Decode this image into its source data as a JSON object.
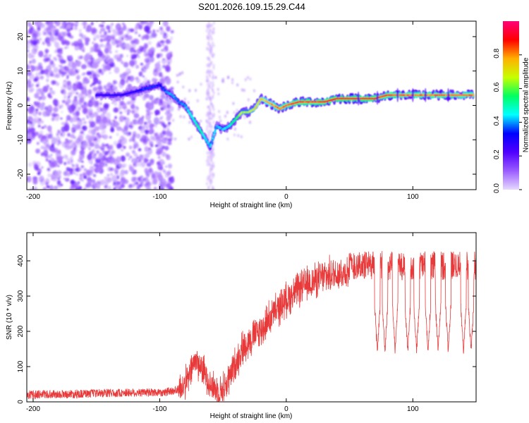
{
  "figure_title": "S201.2026.109.15.29.C44",
  "chart_data": [
    {
      "type": "heatmap",
      "title": "S201.2026.109.15.29.C44",
      "xlabel": "Height of straight line (km)",
      "ylabel": "Frequency (Hz)",
      "xlim": [
        -205,
        150
      ],
      "ylim": [
        -24.5,
        24.5
      ],
      "xticks": [
        -200,
        -100,
        0,
        100
      ],
      "yticks": [
        -20,
        -10,
        0,
        10,
        20
      ],
      "colorbar": {
        "label": "Normalized spectral amplitude",
        "range": [
          0.0,
          1.0
        ],
        "ticks": [
          "0.0",
          "0.2",
          "0.4",
          "0.6",
          "0.8"
        ],
        "tick_values": [
          0.0,
          0.2,
          0.4,
          0.6,
          0.8
        ],
        "colors": [
          "#e6d9ff",
          "#9b5cff",
          "#5000ff",
          "#0000ff",
          "#00ffff",
          "#00ff60",
          "#c8ff00",
          "#ffb000",
          "#ff0000",
          "#ff007a"
        ]
      },
      "ridge": {
        "x": [
          -150,
          -140,
          -130,
          -120,
          -110,
          -100,
          -95,
          -90,
          -85,
          -80,
          -75,
          -70,
          -65,
          -60,
          -55,
          -50,
          -45,
          -40,
          -35,
          -30,
          -25,
          -20,
          -15,
          -10,
          -5,
          0,
          10,
          20,
          30,
          40,
          50,
          60,
          70,
          80,
          90,
          100,
          110,
          120,
          130,
          140,
          148
        ],
        "y": [
          3,
          3,
          3,
          4,
          5,
          6,
          4,
          3,
          1,
          0,
          -3,
          -6,
          -9,
          -12,
          -6,
          -7,
          -6,
          -4,
          -2,
          -2,
          -1,
          2,
          1,
          0,
          -1,
          0,
          1,
          1,
          1,
          2,
          2,
          2,
          2,
          3,
          3,
          3,
          3,
          3,
          3,
          3,
          3
        ],
        "amplitude": [
          0.3,
          0.3,
          0.3,
          0.3,
          0.4,
          0.35,
          0.4,
          0.45,
          0.4,
          0.45,
          0.5,
          0.55,
          0.5,
          0.45,
          0.45,
          0.45,
          0.5,
          0.6,
          0.7,
          0.7,
          0.75,
          0.8,
          0.8,
          0.85,
          0.9,
          0.9,
          0.95,
          0.95,
          0.95,
          0.98,
          0.98,
          0.96,
          0.95,
          0.92,
          0.9,
          0.9,
          0.9,
          0.9,
          0.9,
          0.88,
          0.9
        ]
      },
      "noise_region_xmax": -95
    },
    {
      "type": "line",
      "xlabel": "Height of straight line (km)",
      "ylabel": "SNR (10 * v/v)",
      "xlim": [
        -205,
        150
      ],
      "ylim": [
        0,
        480
      ],
      "xticks": [
        -200,
        -100,
        0,
        100
      ],
      "yticks": [
        0,
        100,
        200,
        300,
        400
      ],
      "color": "#e83a3a",
      "series": [
        {
          "name": "SNR",
          "x": [
            -205,
            -190,
            -170,
            -150,
            -130,
            -110,
            -95,
            -85,
            -78,
            -72,
            -68,
            -64,
            -60,
            -56,
            -52,
            -48,
            -44,
            -40,
            -35,
            -30,
            -25,
            -20,
            -15,
            -10,
            -5,
            0,
            10,
            20,
            30,
            40,
            50,
            60,
            70,
            80,
            90,
            100,
            110,
            120,
            130,
            140,
            150
          ],
          "y": [
            20,
            22,
            22,
            24,
            26,
            26,
            28,
            35,
            60,
            120,
            100,
            80,
            50,
            35,
            30,
            45,
            75,
            110,
            150,
            170,
            190,
            200,
            230,
            250,
            270,
            290,
            320,
            340,
            355,
            365,
            370,
            370,
            370,
            370,
            365,
            370,
            370,
            370,
            370,
            370,
            370
          ]
        }
      ],
      "dropouts_x": [
        72,
        78,
        86,
        96,
        103,
        112,
        120,
        128,
        140,
        146
      ]
    }
  ]
}
